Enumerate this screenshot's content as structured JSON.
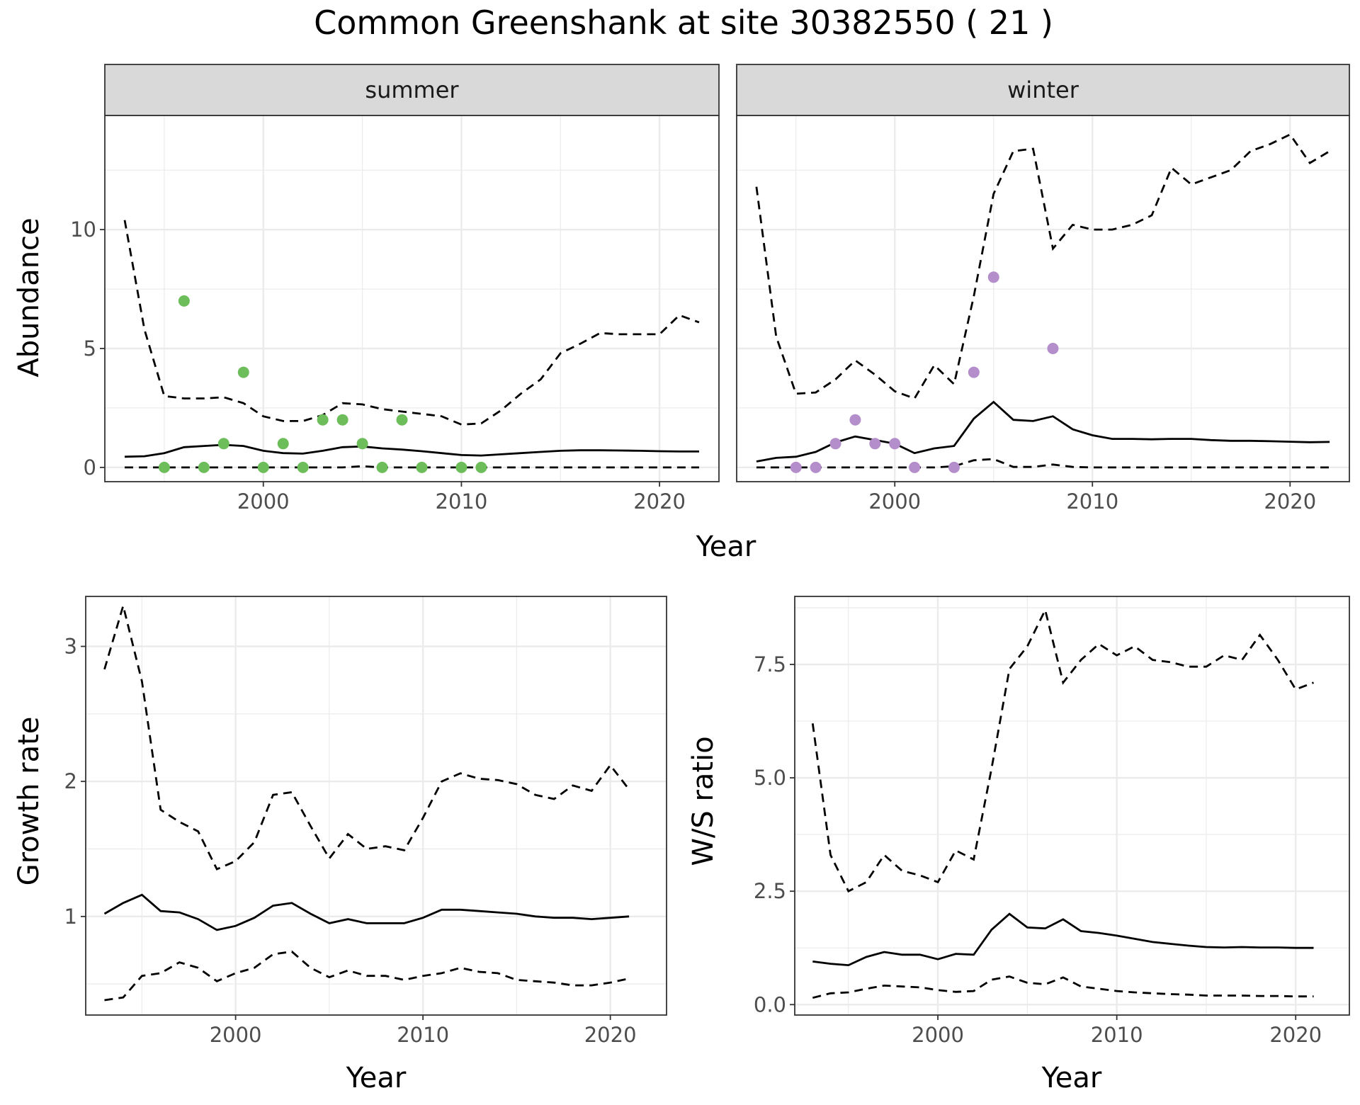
{
  "title": "Common Greenshank at site 30382550 ( 21 )",
  "colors": {
    "summer_points": "#6dbe5b",
    "winter_points": "#b48dcb"
  },
  "chart_data": [
    {
      "id": "abundance",
      "type": "line",
      "facets": [
        "summer",
        "winter"
      ],
      "xlabel": "Year",
      "ylabel": "Abundance",
      "xlim": [
        1992,
        2023
      ],
      "ylim": [
        -0.6,
        14.8
      ],
      "xticks": [
        2000,
        2010,
        2020
      ],
      "yticks": [
        0,
        5,
        10
      ],
      "panels": {
        "summer": {
          "x": [
            1993,
            1994,
            1995,
            1996,
            1997,
            1998,
            1999,
            2000,
            2001,
            2002,
            2003,
            2004,
            2005,
            2006,
            2007,
            2008,
            2009,
            2010,
            2011,
            2012,
            2013,
            2014,
            2015,
            2016,
            2017,
            2018,
            2019,
            2020,
            2021,
            2022
          ],
          "mean": [
            0.45,
            0.47,
            0.6,
            0.85,
            0.9,
            0.95,
            0.9,
            0.7,
            0.6,
            0.58,
            0.7,
            0.85,
            0.88,
            0.8,
            0.75,
            0.68,
            0.6,
            0.52,
            0.5,
            0.55,
            0.6,
            0.65,
            0.7,
            0.72,
            0.72,
            0.71,
            0.7,
            0.68,
            0.67,
            0.67
          ],
          "lower": [
            0,
            0,
            0,
            0,
            0,
            0,
            0,
            0,
            0,
            0,
            0,
            0,
            0.05,
            0,
            0,
            0,
            0,
            0,
            0,
            0,
            0,
            0,
            0,
            0,
            0,
            0,
            0,
            0,
            0,
            0
          ],
          "upper": [
            10.4,
            5.8,
            3.0,
            2.9,
            2.9,
            2.95,
            2.7,
            2.15,
            1.95,
            1.95,
            2.2,
            2.7,
            2.65,
            2.45,
            2.35,
            2.25,
            2.15,
            1.8,
            1.85,
            2.4,
            3.1,
            3.7,
            4.8,
            5.2,
            5.65,
            5.6,
            5.6,
            5.6,
            6.4,
            6.1
          ],
          "observed": {
            "x": [
              1995,
              1996,
              1997,
              1998,
              1999,
              2000,
              2001,
              2002,
              2003,
              2004,
              2005,
              2006,
              2007,
              2008,
              2010,
              2011
            ],
            "y": [
              0,
              7,
              0,
              1,
              4,
              0,
              1,
              0,
              2,
              2,
              1,
              0,
              2,
              0,
              0,
              0
            ]
          }
        },
        "winter": {
          "x": [
            1993,
            1994,
            1995,
            1996,
            1997,
            1998,
            1999,
            2000,
            2001,
            2002,
            2003,
            2004,
            2005,
            2006,
            2007,
            2008,
            2009,
            2010,
            2011,
            2012,
            2013,
            2014,
            2015,
            2016,
            2017,
            2018,
            2019,
            2020,
            2021,
            2022
          ],
          "mean": [
            0.25,
            0.4,
            0.45,
            0.65,
            1.05,
            1.3,
            1.15,
            1.0,
            0.6,
            0.8,
            0.9,
            2.05,
            2.75,
            2.0,
            1.95,
            2.15,
            1.6,
            1.35,
            1.2,
            1.2,
            1.18,
            1.2,
            1.2,
            1.15,
            1.12,
            1.12,
            1.1,
            1.08,
            1.06,
            1.07
          ],
          "lower": [
            0,
            0,
            0,
            0,
            0,
            0,
            0,
            0,
            0,
            0,
            0.05,
            0.3,
            0.35,
            0.02,
            0.02,
            0.12,
            0.02,
            0,
            0,
            0,
            0,
            0,
            0,
            0,
            0,
            0,
            0,
            0,
            0,
            0
          ],
          "upper": [
            11.8,
            5.5,
            3.1,
            3.15,
            3.7,
            4.5,
            3.9,
            3.2,
            2.9,
            4.3,
            3.5,
            7.2,
            11.5,
            13.3,
            13.4,
            9.2,
            10.2,
            10.0,
            10.0,
            10.2,
            10.6,
            12.6,
            11.9,
            12.2,
            12.5,
            13.3,
            13.6,
            14.0,
            12.8,
            13.3
          ],
          "observed": {
            "x": [
              1995,
              1996,
              1997,
              1998,
              1999,
              2000,
              2001,
              2003,
              2004,
              2005,
              2008
            ],
            "y": [
              0,
              0,
              1,
              2,
              1,
              1,
              0,
              0,
              4,
              8,
              5
            ]
          }
        }
      }
    },
    {
      "id": "growth",
      "type": "line",
      "xlabel": "Year",
      "ylabel": "Growth rate",
      "xlim": [
        1992,
        2023
      ],
      "ylim": [
        0.27,
        3.37
      ],
      "xticks": [
        2000,
        2010,
        2020
      ],
      "yticks": [
        1,
        2,
        3
      ],
      "x": [
        1993,
        1994,
        1995,
        1996,
        1997,
        1998,
        1999,
        2000,
        2001,
        2002,
        2003,
        2004,
        2005,
        2006,
        2007,
        2008,
        2009,
        2010,
        2011,
        2012,
        2013,
        2014,
        2015,
        2016,
        2017,
        2018,
        2019,
        2020,
        2021
      ],
      "mean": [
        1.02,
        1.1,
        1.16,
        1.04,
        1.03,
        0.98,
        0.9,
        0.93,
        0.99,
        1.08,
        1.1,
        1.02,
        0.95,
        0.98,
        0.95,
        0.95,
        0.95,
        0.99,
        1.05,
        1.05,
        1.04,
        1.03,
        1.02,
        1.0,
        0.99,
        0.99,
        0.98,
        0.99,
        1.0
      ],
      "lower": [
        0.38,
        0.4,
        0.56,
        0.58,
        0.66,
        0.62,
        0.52,
        0.58,
        0.62,
        0.72,
        0.74,
        0.62,
        0.55,
        0.6,
        0.56,
        0.56,
        0.53,
        0.56,
        0.58,
        0.62,
        0.59,
        0.58,
        0.53,
        0.52,
        0.51,
        0.49,
        0.49,
        0.51,
        0.54
      ],
      "upper": [
        2.83,
        3.3,
        2.74,
        1.79,
        1.7,
        1.63,
        1.35,
        1.41,
        1.55,
        1.9,
        1.92,
        1.67,
        1.43,
        1.61,
        1.5,
        1.52,
        1.49,
        1.73,
        2.0,
        2.06,
        2.02,
        2.01,
        1.98,
        1.9,
        1.87,
        1.97,
        1.93,
        2.12,
        1.94
      ]
    },
    {
      "id": "ws_ratio",
      "type": "line",
      "xlabel": "Year",
      "ylabel": "W/S ratio",
      "xlim": [
        1992,
        2023
      ],
      "ylim": [
        -0.23,
        9.0
      ],
      "xticks": [
        2000,
        2010,
        2020
      ],
      "yticks": [
        0.0,
        2.5,
        5.0,
        7.5
      ],
      "ytick_labels": [
        "0.0",
        "2.5",
        "5.0",
        "7.5"
      ],
      "x": [
        1993,
        1994,
        1995,
        1996,
        1997,
        1998,
        1999,
        2000,
        2001,
        2002,
        2003,
        2004,
        2005,
        2006,
        2007,
        2008,
        2009,
        2010,
        2011,
        2012,
        2013,
        2014,
        2015,
        2016,
        2017,
        2018,
        2019,
        2020,
        2021
      ],
      "mean": [
        0.95,
        0.9,
        0.87,
        1.05,
        1.16,
        1.1,
        1.1,
        1.0,
        1.12,
        1.1,
        1.65,
        2.0,
        1.7,
        1.68,
        1.88,
        1.62,
        1.58,
        1.52,
        1.45,
        1.38,
        1.34,
        1.3,
        1.27,
        1.26,
        1.27,
        1.26,
        1.26,
        1.25,
        1.25
      ],
      "lower": [
        0.15,
        0.25,
        0.27,
        0.35,
        0.42,
        0.4,
        0.38,
        0.32,
        0.28,
        0.3,
        0.55,
        0.62,
        0.48,
        0.45,
        0.6,
        0.4,
        0.35,
        0.3,
        0.27,
        0.25,
        0.23,
        0.22,
        0.2,
        0.2,
        0.2,
        0.19,
        0.19,
        0.18,
        0.18
      ],
      "upper": [
        6.2,
        3.3,
        2.5,
        2.7,
        3.3,
        2.95,
        2.85,
        2.7,
        3.4,
        3.2,
        5.2,
        7.4,
        7.9,
        8.7,
        7.1,
        7.6,
        7.95,
        7.7,
        7.9,
        7.6,
        7.55,
        7.45,
        7.45,
        7.7,
        7.6,
        8.15,
        7.6,
        6.95,
        7.1
      ]
    }
  ]
}
